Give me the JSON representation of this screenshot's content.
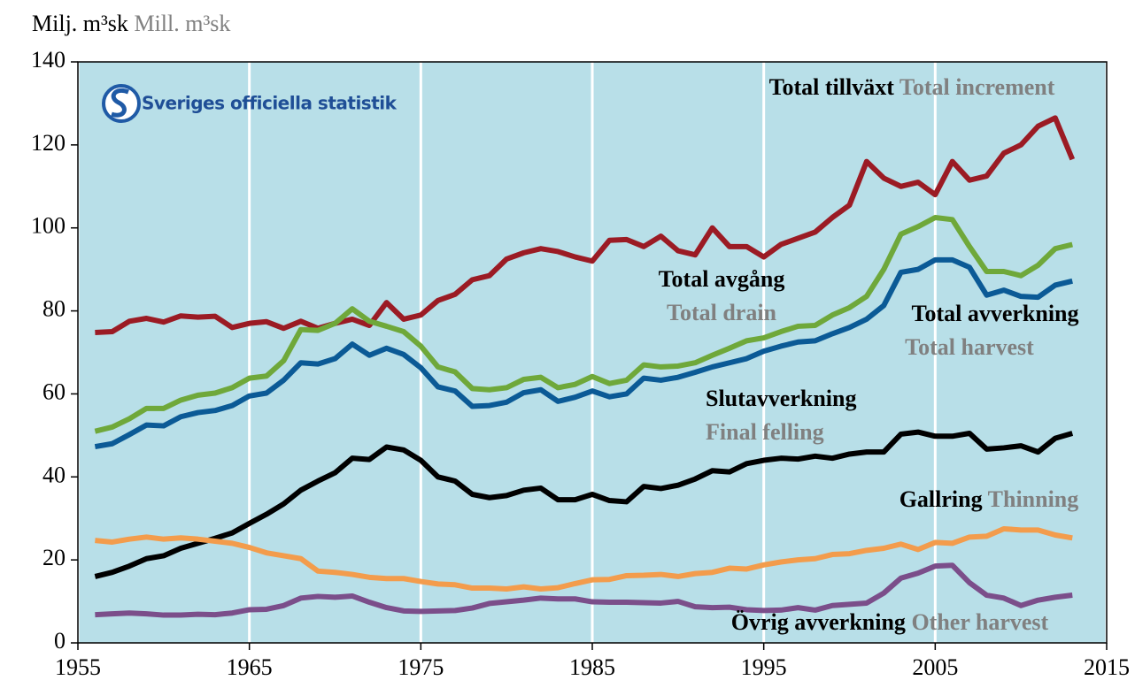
{
  "chart_data": {
    "type": "line",
    "y_label": "Milj. m³sk",
    "y_label_en": "Mill. m³sk",
    "source": "Sveriges officiella statistik",
    "x": [
      1956,
      1957,
      1958,
      1959,
      1960,
      1961,
      1962,
      1963,
      1964,
      1965,
      1966,
      1967,
      1968,
      1969,
      1970,
      1971,
      1972,
      1973,
      1974,
      1975,
      1976,
      1977,
      1978,
      1979,
      1980,
      1981,
      1982,
      1983,
      1984,
      1985,
      1986,
      1987,
      1988,
      1989,
      1990,
      1991,
      1992,
      1993,
      1994,
      1995,
      1996,
      1997,
      1998,
      1999,
      2000,
      2001,
      2002,
      2003,
      2004,
      2005,
      2006,
      2007,
      2008,
      2009,
      2010,
      2011,
      2012,
      2013
    ],
    "xlim": [
      1955,
      2015
    ],
    "xticks": [
      1955,
      1965,
      1975,
      1985,
      1995,
      2005,
      2015
    ],
    "ylim": [
      0,
      140
    ],
    "yticks": [
      0,
      20,
      40,
      60,
      80,
      100,
      120,
      140
    ],
    "grid": "x",
    "background": "#b8dfe8",
    "series": [
      {
        "name": "Total tillväxt",
        "name_en": "Total increment",
        "color": "#9b1b24",
        "values": [
          74.8,
          75,
          77.5,
          78.2,
          77.3,
          78.8,
          78.5,
          78.7,
          76,
          77,
          77.4,
          75.8,
          77.5,
          75.8,
          77,
          78,
          76.5,
          82,
          78,
          79,
          82.5,
          84,
          87.5,
          88.5,
          92.5,
          94,
          95,
          94.3,
          93,
          92,
          97,
          97.2,
          95.5,
          98,
          94.5,
          93.5,
          100,
          95.5,
          95.5,
          93,
          96,
          97.5,
          99,
          102.5,
          105.5,
          116,
          112,
          110,
          111,
          108,
          116,
          111.5,
          112.5,
          118,
          120,
          124.5,
          126.5,
          116.5
        ]
      },
      {
        "name": "Total avgång",
        "name_en": "Total drain",
        "color": "#6fa83a",
        "values": [
          51,
          52,
          54,
          56.5,
          56.5,
          58.5,
          59.7,
          60.2,
          61.5,
          63.8,
          64.3,
          68,
          75.5,
          75.3,
          77,
          80.5,
          77.5,
          76.3,
          75,
          71.5,
          66.5,
          65.3,
          61.3,
          61,
          61.5,
          63.5,
          64,
          61.5,
          62.3,
          64.2,
          62.5,
          63.3,
          67,
          66.5,
          66.7,
          67.5,
          69.3,
          71,
          72.8,
          73.5,
          75,
          76.3,
          76.5,
          79,
          80.8,
          83.5,
          90,
          98.5,
          100.3,
          102.5,
          102,
          95.5,
          89.5,
          89.5,
          88.5,
          91,
          95,
          96
        ]
      },
      {
        "name": "Total avverkning",
        "name_en": "Total harvest",
        "color": "#0b5a96",
        "values": [
          47.3,
          48,
          50.2,
          52.5,
          52.3,
          54.5,
          55.5,
          56,
          57.2,
          59.5,
          60.2,
          63.3,
          67.5,
          67.2,
          68.5,
          72,
          69.3,
          71,
          69.5,
          66.3,
          61.7,
          60.7,
          57,
          57.2,
          58,
          60.3,
          61,
          58.2,
          59.2,
          60.7,
          59.3,
          60,
          63.8,
          63.3,
          64,
          65.2,
          66.5,
          67.5,
          68.5,
          70.3,
          71.5,
          72.5,
          72.8,
          74.5,
          76,
          78,
          81.3,
          89.3,
          90,
          92.3,
          92.3,
          90.5,
          83.8,
          85,
          83.5,
          83.3,
          86.2,
          87.2
        ]
      },
      {
        "name": "Slutavverkning",
        "name_en": "Final felling",
        "color": "#000000",
        "values": [
          16,
          17,
          18.5,
          20.3,
          21,
          22.8,
          24,
          25.2,
          26.5,
          28.8,
          31,
          33.5,
          36.8,
          39,
          41,
          44.5,
          44.2,
          47.2,
          46.5,
          44,
          40,
          39,
          35.8,
          35,
          35.5,
          36.8,
          37.3,
          34.5,
          34.5,
          35.8,
          34.3,
          34,
          37.7,
          37.2,
          38,
          39.5,
          41.5,
          41.2,
          43.2,
          44,
          44.5,
          44.3,
          45,
          44.5,
          45.5,
          46,
          46,
          50.3,
          50.8,
          49.8,
          49.8,
          50.5,
          46.7,
          47,
          47.5,
          46,
          49.3,
          50.5
        ]
      },
      {
        "name": "Gallring",
        "name_en": "Thinning",
        "color": "#f39c4c",
        "values": [
          24.7,
          24.3,
          25,
          25.5,
          25,
          25.3,
          25,
          24.5,
          24,
          23,
          21.7,
          21,
          20.3,
          17.3,
          17,
          16.5,
          15.8,
          15.5,
          15.5,
          14.8,
          14.2,
          14,
          13.2,
          13.2,
          13,
          13.5,
          13,
          13.3,
          14.3,
          15.2,
          15.3,
          16.2,
          16.3,
          16.5,
          16,
          16.7,
          17,
          18,
          17.8,
          18.8,
          19.5,
          20,
          20.3,
          21.3,
          21.5,
          22.3,
          22.8,
          23.8,
          22.5,
          24.2,
          24,
          25.5,
          25.7,
          27.5,
          27.2,
          27.2,
          26,
          25.3
        ]
      },
      {
        "name": "Övrig avverkning",
        "name_en": "Other harvest",
        "color": "#7b4e8a",
        "values": [
          6.8,
          7,
          7.2,
          7,
          6.7,
          6.7,
          6.9,
          6.8,
          7.2,
          8,
          8.1,
          9,
          10.8,
          11.2,
          11,
          11.3,
          9.8,
          8.5,
          7.7,
          7.6,
          7.7,
          7.8,
          8.4,
          9.5,
          9.9,
          10.3,
          10.8,
          10.6,
          10.6,
          9.9,
          9.8,
          9.8,
          9.7,
          9.6,
          10,
          8.7,
          8.5,
          8.6,
          8,
          7.8,
          7.9,
          8.5,
          7.9,
          9,
          9.3,
          9.6,
          12,
          15.6,
          16.8,
          18.5,
          18.7,
          14.5,
          11.5,
          10.8,
          9,
          10.3,
          11,
          11.5
        ]
      }
    ]
  }
}
